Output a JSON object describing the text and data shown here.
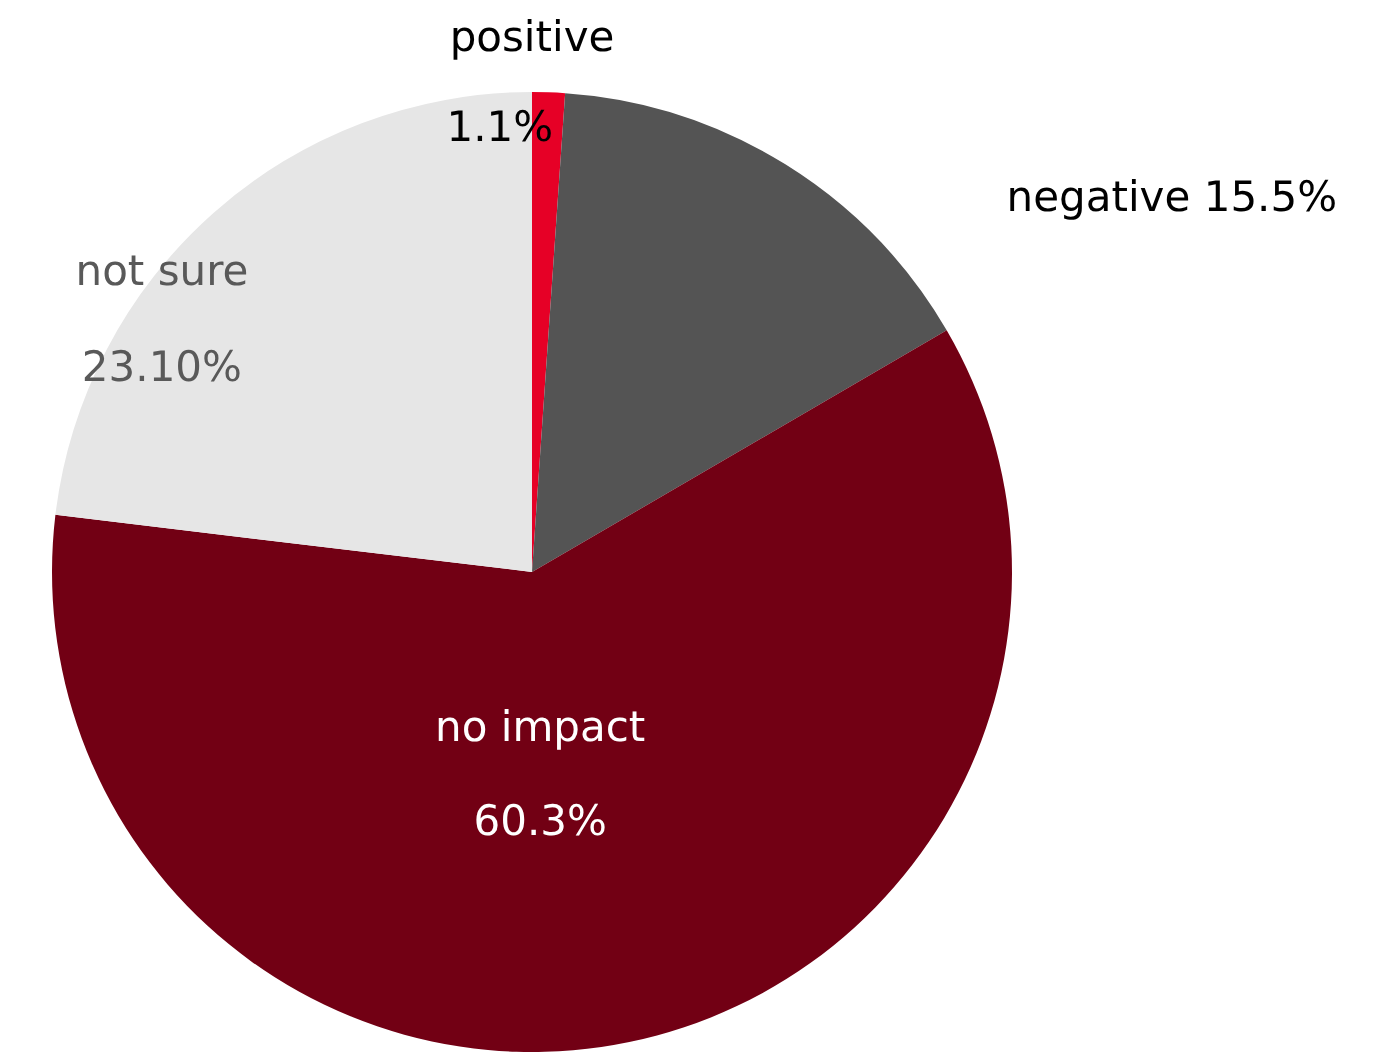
{
  "chart_data": {
    "type": "pie",
    "categories": [
      "positive",
      "negative",
      "no impact",
      "not sure"
    ],
    "values": [
      1.1,
      15.5,
      60.3,
      23.1
    ],
    "colors": [
      "#e60026",
      "#545454",
      "#720014",
      "#e6e6e6"
    ],
    "value_labels": [
      "1.1%",
      "15.5%",
      "60.3%",
      "23.10%"
    ]
  }
}
